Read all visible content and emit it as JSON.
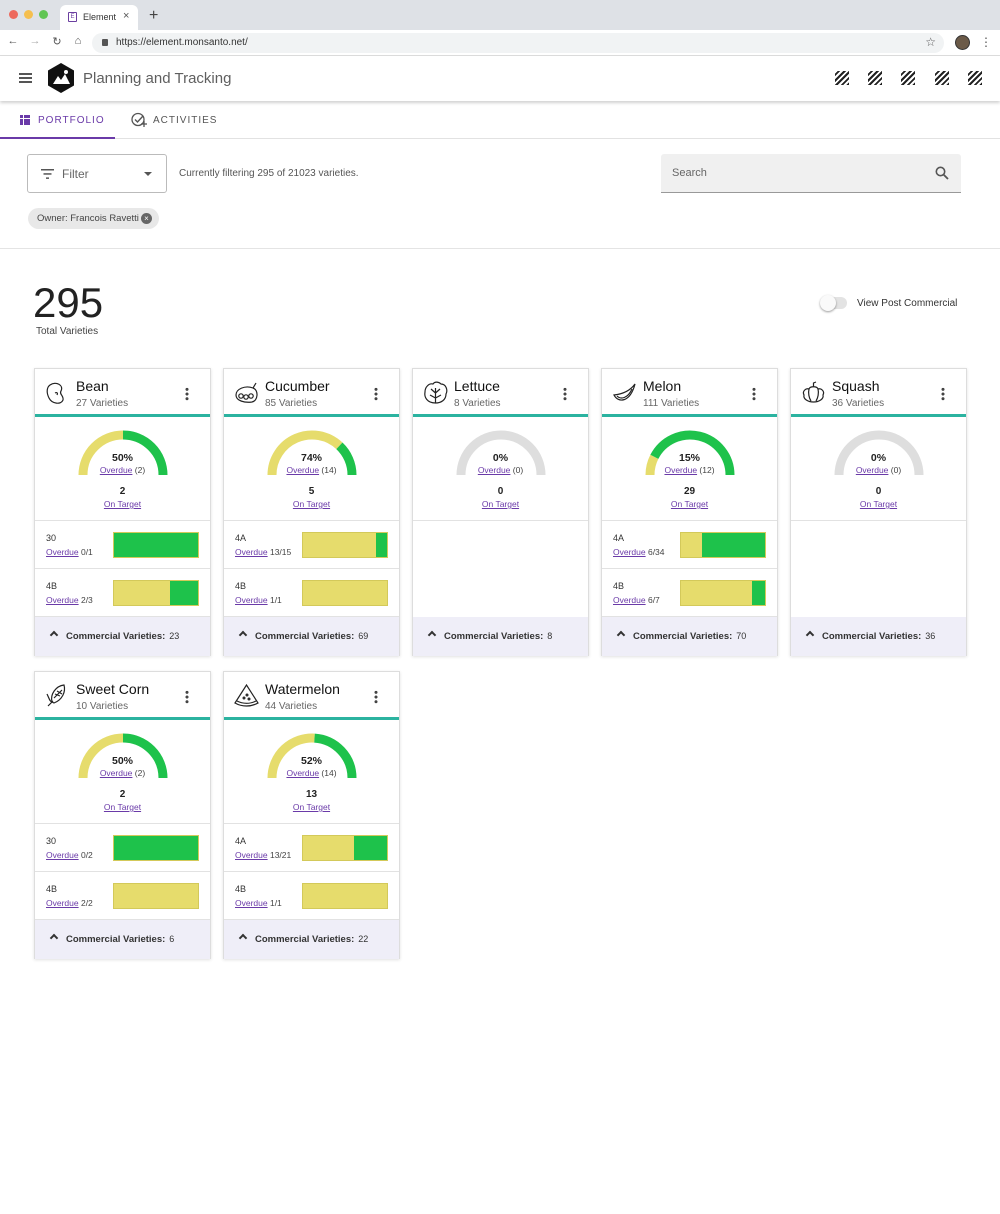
{
  "browser": {
    "tab_title": "Element",
    "tab_favicon": "E",
    "close_glyph": "×",
    "new_tab_glyph": "+",
    "url": "https://element.monsanto.net/",
    "back_glyph": "←",
    "forward_glyph": "→",
    "reload_glyph": "↻",
    "home_glyph": "⌂",
    "star_glyph": "☆",
    "menu_glyph": "⋮"
  },
  "app": {
    "title": "Planning and Tracking"
  },
  "nav": {
    "portfolio": "PORTFOLIO",
    "activities": "ACTIVITIES"
  },
  "filter": {
    "label": "Filter",
    "status": "Currently filtering 295 of 21023 varieties.",
    "chip": "Owner: Francois Ravetti",
    "chip_remove": "×"
  },
  "search": {
    "placeholder": "Search"
  },
  "summary": {
    "total": "295",
    "total_label": "Total Varieties",
    "toggle_label": "View Post Commercial",
    "toggle_on": false
  },
  "colors": {
    "accent": "#6a3aa8",
    "teal": "#2bb3a0",
    "green": "#1ec24b",
    "yellow": "#e6dc6c",
    "gray": "#dedede"
  },
  "labels": {
    "overdue": "Overdue",
    "on_target": "On Target",
    "commercial": "Commercial Varieties:"
  },
  "crops": [
    {
      "name": "Bean",
      "icon": "bean-icon",
      "varieties": "27 Varieties",
      "pct_text": "50%",
      "pct": 0.5,
      "overdue": "(2)",
      "on_target": "2",
      "commercial": "23",
      "stages": [
        {
          "name": "30",
          "count": "0/1",
          "green": 1.0
        },
        {
          "name": "4B",
          "count": "2/3",
          "green": 0.33
        }
      ]
    },
    {
      "name": "Cucumber",
      "icon": "cucumber-icon",
      "varieties": "85 Varieties",
      "pct_text": "74%",
      "pct": 0.74,
      "overdue": "(14)",
      "on_target": "5",
      "commercial": "69",
      "stages": [
        {
          "name": "4A",
          "count": "13/15",
          "green": 0.13
        },
        {
          "name": "4B",
          "count": "1/1",
          "green": 0.0
        }
      ]
    },
    {
      "name": "Lettuce",
      "icon": "lettuce-icon",
      "varieties": "8 Varieties",
      "pct_text": "0%",
      "pct": 0.0,
      "overdue": "(0)",
      "on_target": "0",
      "commercial": "8",
      "empty": true,
      "stages": []
    },
    {
      "name": "Melon",
      "icon": "melon-icon",
      "varieties": "111 Varieties",
      "pct_text": "15%",
      "pct": 0.15,
      "overdue": "(12)",
      "on_target": "29",
      "commercial": "70",
      "stages": [
        {
          "name": "4A",
          "count": "6/34",
          "green": 0.75
        },
        {
          "name": "4B",
          "count": "6/7",
          "green": 0.16
        }
      ]
    },
    {
      "name": "Squash",
      "icon": "squash-icon",
      "varieties": "36 Varieties",
      "pct_text": "0%",
      "pct": 0.0,
      "overdue": "(0)",
      "on_target": "0",
      "commercial": "36",
      "empty": true,
      "stages": []
    },
    {
      "name": "Sweet Corn",
      "icon": "corn-icon",
      "varieties": "10 Varieties",
      "pct_text": "50%",
      "pct": 0.5,
      "overdue": "(2)",
      "on_target": "2",
      "commercial": "6",
      "stages": [
        {
          "name": "30",
          "count": "0/2",
          "green": 1.0
        },
        {
          "name": "4B",
          "count": "2/2",
          "green": 0.0
        }
      ]
    },
    {
      "name": "Watermelon",
      "icon": "watermelon-icon",
      "varieties": "44 Varieties",
      "pct_text": "52%",
      "pct": 0.52,
      "overdue": "(14)",
      "on_target": "13",
      "commercial": "22",
      "stages": [
        {
          "name": "4A",
          "count": "13/21",
          "green": 0.39
        },
        {
          "name": "4B",
          "count": "1/1",
          "green": 0.0
        }
      ]
    }
  ]
}
